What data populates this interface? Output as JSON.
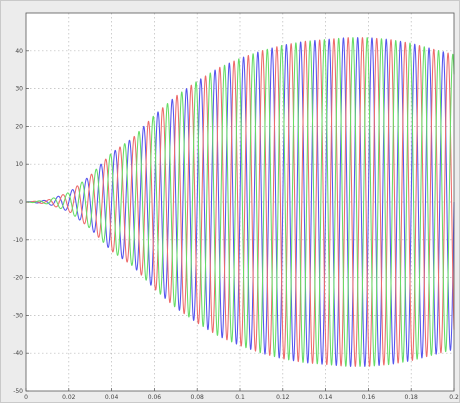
{
  "chart_data": {
    "type": "line",
    "title": "",
    "xlabel": "",
    "ylabel": "",
    "xlim": [
      0,
      0.2
    ],
    "ylim": [
      -50,
      50
    ],
    "grid": true,
    "legend": "none",
    "x_ticks": [
      {
        "value": 0,
        "label": "0"
      },
      {
        "value": 0.02,
        "label": "0.02"
      },
      {
        "value": 0.04,
        "label": "0.04"
      },
      {
        "value": 0.06,
        "label": "0.06"
      },
      {
        "value": 0.08,
        "label": "0.08"
      },
      {
        "value": 0.1,
        "label": "0.1"
      },
      {
        "value": 0.12,
        "label": "0.12"
      },
      {
        "value": 0.14,
        "label": "0.14"
      },
      {
        "value": 0.16,
        "label": "0.16"
      },
      {
        "value": 0.18,
        "label": "0.18"
      },
      {
        "value": 0.2,
        "label": "0.2"
      }
    ],
    "y_ticks": [
      {
        "value": 40,
        "label": "40"
      },
      {
        "value": 30,
        "label": "30"
      },
      {
        "value": 20,
        "label": "20"
      },
      {
        "value": 10,
        "label": "10"
      },
      {
        "value": 0,
        "label": "0"
      },
      {
        "value": -10,
        "label": "-10"
      },
      {
        "value": -20,
        "label": "-20"
      },
      {
        "value": -30,
        "label": "-30"
      },
      {
        "value": -40,
        "label": "-40"
      },
      {
        "value": -50,
        "label": "-50"
      }
    ],
    "frequency_hz": 150,
    "envelope": {
      "t": [
        0,
        0.01,
        0.02,
        0.03,
        0.04,
        0.05,
        0.06,
        0.07,
        0.08,
        0.09,
        0.1,
        0.11,
        0.12,
        0.13,
        0.14,
        0.15,
        0.16,
        0.17,
        0.18,
        0.19,
        0.2
      ],
      "amplitude": [
        0,
        0.5,
        2.5,
        7,
        13,
        17,
        23,
        28,
        32,
        35.5,
        38,
        40,
        41.5,
        42.5,
        43,
        43.5,
        43.5,
        43,
        42,
        40.5,
        39
      ]
    },
    "series": [
      {
        "color": "#5555ee",
        "phase_deg": 0
      },
      {
        "color": "#ee6b6b",
        "phase_deg": -120
      },
      {
        "color": "#66dd66",
        "phase_deg": 120
      }
    ]
  }
}
